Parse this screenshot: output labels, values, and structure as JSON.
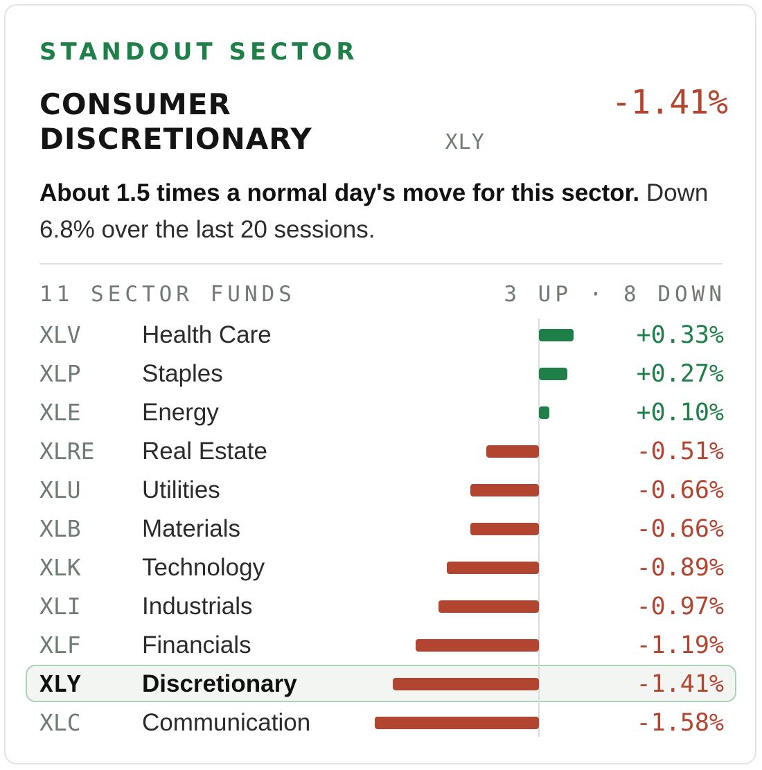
{
  "eyebrow": "STANDOUT SECTOR",
  "sector": {
    "name": "CONSUMER DISCRETIONARY",
    "ticker": "XLY",
    "change": "-1.41%"
  },
  "summary": {
    "bold": "About 1.5 times a normal day's move for this sector.",
    "rest": "Down 6.8% over the last 20 sessions."
  },
  "list_header": {
    "left": "11 SECTOR FUNDS",
    "right": "3 UP · 8 DOWN"
  },
  "colors": {
    "up": "#1e8048",
    "down": "#b24530",
    "highlight_border": "#a9d2b6"
  },
  "highlight_ticker": "XLY",
  "chart_data": {
    "type": "bar",
    "orientation": "horizontal",
    "categories": [
      "XLV",
      "XLP",
      "XLE",
      "XLRE",
      "XLU",
      "XLB",
      "XLK",
      "XLI",
      "XLF",
      "XLY",
      "XLC"
    ],
    "names": [
      "Health Care",
      "Staples",
      "Energy",
      "Real Estate",
      "Utilities",
      "Materials",
      "Technology",
      "Industrials",
      "Financials",
      "Discretionary",
      "Communication"
    ],
    "values": [
      0.33,
      0.27,
      0.1,
      -0.51,
      -0.66,
      -0.66,
      -0.89,
      -0.97,
      -1.19,
      -1.41,
      -1.58
    ],
    "labels": [
      "+0.33%",
      "+0.27%",
      "+0.10%",
      "-0.51%",
      "-0.66%",
      "-0.66%",
      "-0.89%",
      "-0.97%",
      "-1.19%",
      "-1.41%",
      "-1.58%"
    ],
    "xlim": [
      -1.58,
      0.33
    ],
    "grid": false
  }
}
